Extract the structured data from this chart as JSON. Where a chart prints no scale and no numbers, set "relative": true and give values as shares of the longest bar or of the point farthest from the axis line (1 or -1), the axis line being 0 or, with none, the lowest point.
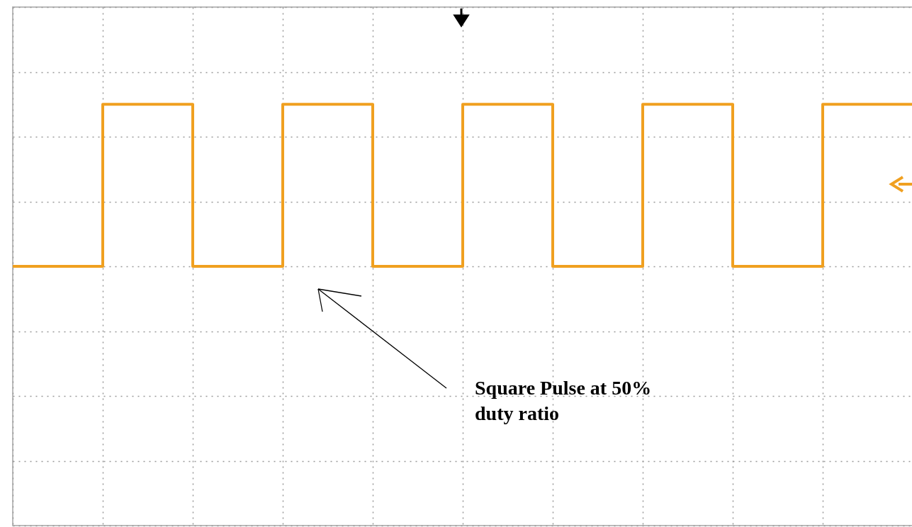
{
  "chart_data": {
    "type": "step",
    "relative": true,
    "categories": [
      null,
      null,
      null,
      null,
      null,
      null,
      null,
      null,
      null,
      null,
      null
    ],
    "series": [
      {
        "color": "#f0a020",
        "values": [
          0,
          1,
          0,
          1,
          0,
          1,
          0,
          1,
          0,
          1,
          1
        ]
      }
    ],
    "annotations": [
      "Square Pulse at 50% duty ratio"
    ],
    "grid": true,
    "marker": "none",
    "line_style": "solid",
    "legend": false
  }
}
